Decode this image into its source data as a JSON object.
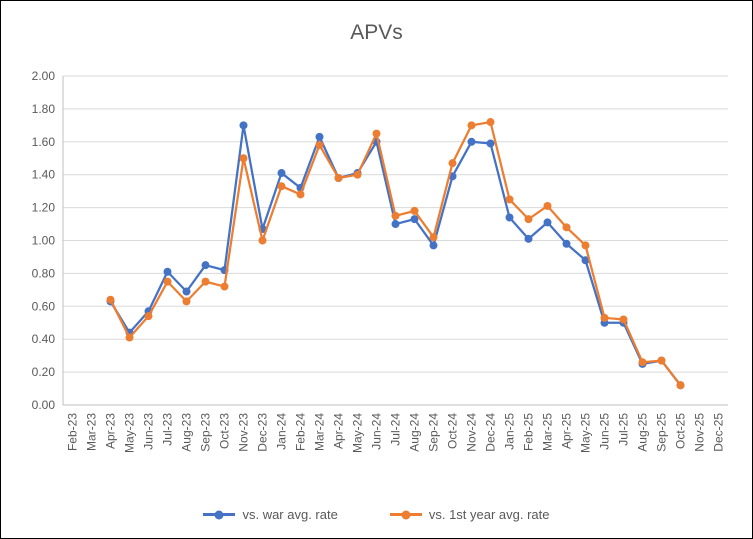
{
  "chart_data": {
    "type": "line",
    "title": "APVs",
    "categories": [
      "Feb-23",
      "Mar-23",
      "Apr-23",
      "May-23",
      "Jun-23",
      "Jul-23",
      "Aug-23",
      "Sep-23",
      "Oct-23",
      "Nov-23",
      "Dec-23",
      "Jan-24",
      "Feb-24",
      "Mar-24",
      "Apr-24",
      "May-24",
      "Jun-24",
      "Jul-24",
      "Aug-24",
      "Sep-24",
      "Oct-24",
      "Nov-24",
      "Dec-24",
      "Jan-25",
      "Feb-25",
      "Mar-25",
      "Apr-25",
      "May-25",
      "Jun-25",
      "Jul-25",
      "Aug-25",
      "Sep-25",
      "Oct-25",
      "Nov-25",
      "Dec-25"
    ],
    "series": [
      {
        "name": "vs. war avg. rate",
        "color": "#4472C4",
        "values": [
          null,
          null,
          0.63,
          0.44,
          0.57,
          0.81,
          0.69,
          0.85,
          0.82,
          1.7,
          1.07,
          1.41,
          1.32,
          1.63,
          1.38,
          1.41,
          1.6,
          1.1,
          1.13,
          0.97,
          1.39,
          1.6,
          1.59,
          1.14,
          1.01,
          1.11,
          0.98,
          0.88,
          0.5,
          0.5,
          0.25,
          0.27,
          0.12,
          null,
          null
        ]
      },
      {
        "name": "vs. 1st year avg. rate",
        "color": "#ED7D31",
        "values": [
          null,
          null,
          0.64,
          0.41,
          0.54,
          0.75,
          0.63,
          0.75,
          0.72,
          1.5,
          1.0,
          1.33,
          1.28,
          1.58,
          1.38,
          1.4,
          1.65,
          1.15,
          1.18,
          1.02,
          1.47,
          1.7,
          1.72,
          1.25,
          1.13,
          1.21,
          1.08,
          0.97,
          0.53,
          0.52,
          0.26,
          0.27,
          0.12,
          null,
          null
        ]
      }
    ],
    "ylim": [
      0,
      2
    ],
    "ytick_step": 0.2,
    "ytick_format_decimals": 2,
    "grid": true,
    "legend_position": "bottom",
    "colors": {
      "title_text": "#595959",
      "axis_text": "#595959",
      "gridline": "#D9D9D9",
      "axis_line": "#BFBFBF",
      "background": "#FFFFFF",
      "frame_border": "#000000"
    }
  }
}
